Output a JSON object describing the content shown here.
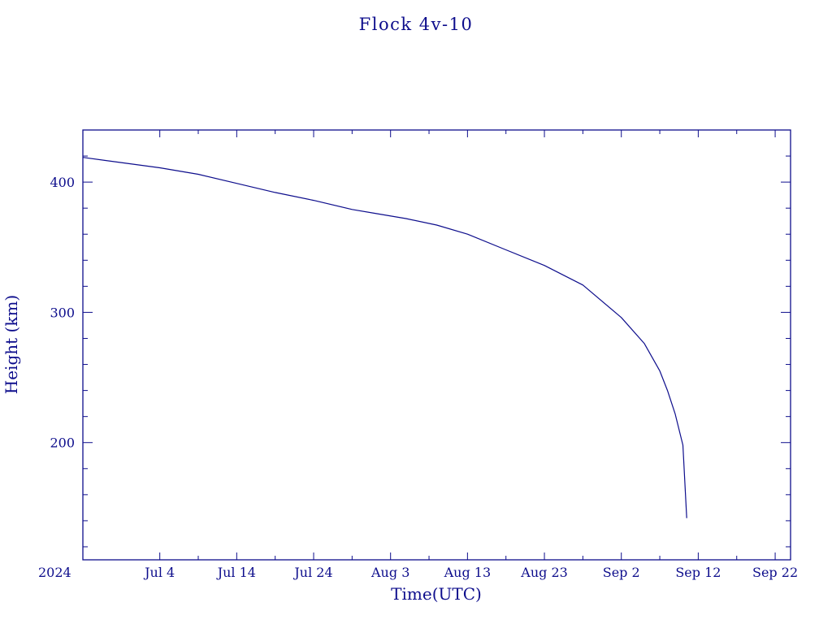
{
  "chart_data": {
    "type": "line",
    "title": "Flock 4v-10",
    "xlabel": "Time(UTC)",
    "ylabel": "Height (km)",
    "year_label": "2024",
    "x_tick_labels": [
      "Jul  4",
      "Jul 14",
      "Jul 24",
      "Aug  3",
      "Aug 13",
      "Aug 23",
      "Sep  2",
      "Sep 12",
      "Sep 22"
    ],
    "x_tick_dates": [
      "2024-07-04",
      "2024-07-14",
      "2024-07-24",
      "2024-08-03",
      "2024-08-13",
      "2024-08-23",
      "2024-09-02",
      "2024-09-12",
      "2024-09-22"
    ],
    "x_minor_tick_dates": [
      "2024-07-09",
      "2024-07-19",
      "2024-07-29",
      "2024-08-08",
      "2024-08-18",
      "2024-08-28",
      "2024-09-07",
      "2024-09-17"
    ],
    "xlim": [
      "2024-06-24",
      "2024-09-24"
    ],
    "y_ticks": [
      200,
      300,
      400
    ],
    "y_minor_ticks": [
      120,
      140,
      160,
      180,
      220,
      240,
      260,
      280,
      320,
      340,
      360,
      380,
      420,
      440
    ],
    "ylim": [
      110,
      440
    ],
    "grid": false,
    "series": [
      {
        "x": [
          "2024-06-24",
          "2024-06-29",
          "2024-07-04",
          "2024-07-09",
          "2024-07-14",
          "2024-07-19",
          "2024-07-24",
          "2024-07-29",
          "2024-08-01",
          "2024-08-05",
          "2024-08-09",
          "2024-08-13",
          "2024-08-18",
          "2024-08-23",
          "2024-08-28",
          "2024-09-02",
          "2024-09-05",
          "2024-09-07",
          "2024-09-08",
          "2024-09-09",
          "2024-09-10",
          "2024-09-10T12:00"
        ],
        "y": [
          419,
          415,
          411,
          406,
          399,
          392,
          386,
          379,
          376,
          372,
          367,
          360,
          348,
          336,
          321,
          296,
          276,
          255,
          240,
          222,
          198,
          142
        ]
      }
    ]
  }
}
